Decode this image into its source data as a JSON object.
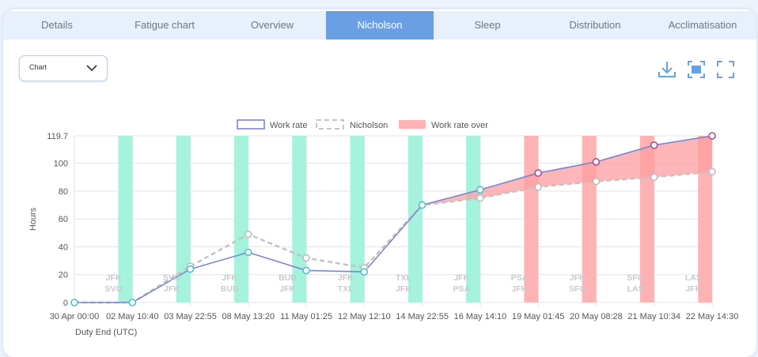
{
  "tabs": [
    {
      "label": "Details",
      "active": false
    },
    {
      "label": "Fatigue chart",
      "active": false
    },
    {
      "label": "Overview",
      "active": false
    },
    {
      "label": "Nicholson",
      "active": true
    },
    {
      "label": "Sleep",
      "active": false
    },
    {
      "label": "Distribution",
      "active": false
    },
    {
      "label": "Acclimatisation",
      "active": false
    }
  ],
  "view_select": {
    "value": "Chart"
  },
  "toolbar": {
    "icons": [
      "download-icon",
      "screenshot-icon",
      "fullscreen-icon"
    ]
  },
  "colors": {
    "accent": "#6a9fe4",
    "work_rate": "#7f84cf",
    "nicholson": "#c3c3c3",
    "over_fill": "#ff9ea0",
    "sleep_band": "#a5f2dd",
    "over_band": "#ffb2b4"
  },
  "chart_data": {
    "type": "line",
    "ylabel": "Hours",
    "xlabel": "Duty End (UTC)",
    "ylim": [
      0,
      119.7
    ],
    "yticks": [
      0,
      20,
      40,
      60,
      80,
      100,
      119.7
    ],
    "legend": [
      "Work rate",
      "Nicholson",
      "Work rate over"
    ],
    "legend_position": "top-center",
    "x": [
      "30 Apr 00:00",
      "02 May 10:40",
      "03 May 22:55",
      "08 May 13:20",
      "11 May 01:25",
      "12 May 12:10",
      "14 May 22:55",
      "16 May 14:10",
      "19 May 01:45",
      "20 May 08:28",
      "21 May 10:34",
      "22 May 14:30"
    ],
    "series": [
      {
        "name": "Work rate",
        "values": [
          0,
          0,
          24,
          36,
          23,
          22,
          70,
          81,
          93,
          101,
          113,
          120
        ]
      },
      {
        "name": "Nicholson",
        "values": [
          0,
          0,
          26,
          49,
          32,
          25,
          70,
          75,
          83,
          87,
          90,
          94
        ]
      }
    ],
    "routes": [
      [
        "JFK",
        "SVO"
      ],
      [
        "SVO",
        "JFK"
      ],
      [
        "JFK",
        "BUD"
      ],
      [
        "BUD",
        "JFK"
      ],
      [
        "JFK",
        "TXL"
      ],
      [
        "TXL",
        "JFK"
      ],
      [
        "JFK",
        "PSA"
      ],
      [
        "PSA",
        "JFK"
      ],
      [
        "JFK",
        "SFO"
      ],
      [
        "SFO",
        "LAS"
      ],
      [
        "LAS",
        "JFK"
      ]
    ],
    "band_types": [
      "sleep",
      "sleep",
      "sleep",
      "sleep",
      "sleep",
      "sleep",
      "sleep",
      "over",
      "over",
      "over",
      "over"
    ]
  }
}
